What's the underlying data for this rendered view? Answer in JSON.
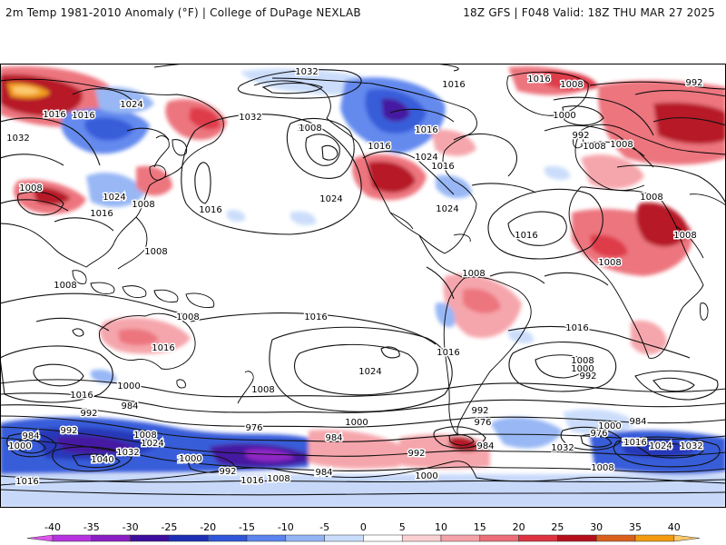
{
  "header": {
    "title_left": "2m Temp 1981-2010 Anomaly (°F) | College of DuPage NEXLAB",
    "title_right": "18Z GFS | F048 Valid: 18Z THU MAR 27 2025"
  },
  "colors": {
    "land_outline": "#000000",
    "contour": "#111111"
  },
  "colorbar": {
    "ticks": [
      "-40",
      "-35",
      "-30",
      "-25",
      "-20",
      "-15",
      "-10",
      "-5",
      "0",
      "5",
      "10",
      "15",
      "20",
      "25",
      "30",
      "35",
      "40"
    ],
    "colors": [
      "#e055f0",
      "#b533df",
      "#8a1dc3",
      "#3d0d9e",
      "#1b2fb5",
      "#2f55d8",
      "#5b84ee",
      "#93b4f4",
      "#c9dcfb",
      "#ffffff",
      "#fbd0d3",
      "#f5a2a8",
      "#ec6e78",
      "#dd3340",
      "#b4101c",
      "#d9601c",
      "#f29a10",
      "#fdc86a"
    ]
  },
  "isobars": [
    {
      "label": "1024"
    },
    {
      "label": "1032"
    },
    {
      "label": "1016"
    },
    {
      "label": "1008"
    },
    {
      "label": "1016"
    },
    {
      "label": "1024"
    },
    {
      "label": "1032"
    },
    {
      "label": "1008"
    },
    {
      "label": "1016"
    },
    {
      "label": "1016"
    },
    {
      "label": "1016"
    },
    {
      "label": "1024"
    },
    {
      "label": "1016"
    },
    {
      "label": "1008"
    },
    {
      "label": "992"
    },
    {
      "label": "1000"
    },
    {
      "label": "992"
    },
    {
      "label": "1008"
    },
    {
      "label": "1016"
    },
    {
      "label": "1032"
    },
    {
      "label": "1008"
    },
    {
      "label": "1008"
    },
    {
      "label": "1024"
    },
    {
      "label": "1016"
    },
    {
      "label": "1016"
    },
    {
      "label": "1008"
    },
    {
      "label": "1024"
    },
    {
      "label": "1024"
    },
    {
      "label": "1016"
    },
    {
      "label": "1008"
    },
    {
      "label": "1008"
    },
    {
      "label": "1008"
    },
    {
      "label": "1008"
    },
    {
      "label": "1008"
    },
    {
      "label": "1008"
    },
    {
      "label": "1016"
    },
    {
      "label": "1016"
    },
    {
      "label": "1016"
    },
    {
      "label": "1008"
    },
    {
      "label": "1016"
    },
    {
      "label": "1024"
    },
    {
      "label": "1008"
    },
    {
      "label": "1000"
    },
    {
      "label": "1016"
    },
    {
      "label": "1008"
    },
    {
      "label": "992"
    },
    {
      "label": "1000"
    },
    {
      "label": "992"
    },
    {
      "label": "984"
    },
    {
      "label": "976"
    },
    {
      "label": "1000"
    },
    {
      "label": "984"
    },
    {
      "label": "976"
    },
    {
      "label": "984"
    },
    {
      "label": "992"
    },
    {
      "label": "976"
    },
    {
      "label": "984"
    },
    {
      "label": "1000"
    },
    {
      "label": "1016"
    },
    {
      "label": "1024"
    },
    {
      "label": "1032"
    },
    {
      "label": "1008"
    },
    {
      "label": "1024"
    },
    {
      "label": "1032"
    },
    {
      "label": "1040"
    },
    {
      "label": "1000"
    },
    {
      "label": "992"
    },
    {
      "label": "984"
    },
    {
      "label": "1008"
    },
    {
      "label": "1016"
    },
    {
      "label": "984"
    },
    {
      "label": "1000"
    },
    {
      "label": "992"
    },
    {
      "label": "1008"
    },
    {
      "label": "992"
    },
    {
      "label": "984"
    },
    {
      "label": "1000"
    },
    {
      "label": "1016"
    },
    {
      "label": "1008"
    },
    {
      "label": "1016"
    },
    {
      "label": "1032"
    }
  ]
}
